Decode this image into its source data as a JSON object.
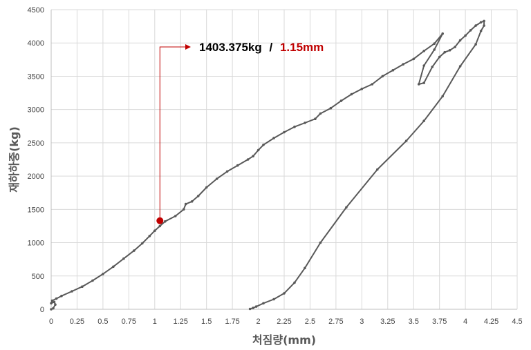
{
  "chart_data": {
    "type": "line",
    "xlabel": "처짐량(mm)",
    "ylabel": "재하하중(kg)",
    "xlim": [
      0,
      4.5
    ],
    "ylim": [
      0,
      4500
    ],
    "x_ticks": [
      "0",
      "0.25",
      "0.5",
      "0.75",
      "1",
      "1.25",
      "1.5",
      "1.75",
      "2",
      "2.25",
      "2.5",
      "2.75",
      "3",
      "3.25",
      "3.5",
      "3.75",
      "4",
      "4.25",
      "4.5"
    ],
    "y_ticks": [
      "0",
      "500",
      "1000",
      "1500",
      "2000",
      "2500",
      "3000",
      "3500",
      "4000",
      "4500"
    ],
    "grid": true,
    "legend": "none",
    "series_color": "#595959",
    "series": [
      {
        "points": [
          [
            0.0,
            0
          ],
          [
            0.02,
            15
          ],
          [
            0.04,
            70
          ],
          [
            0.03,
            110
          ],
          [
            0.0,
            90
          ],
          [
            0.01,
            130
          ],
          [
            0.05,
            160
          ],
          [
            0.1,
            200
          ],
          [
            0.2,
            270
          ],
          [
            0.3,
            340
          ],
          [
            0.4,
            430
          ],
          [
            0.5,
            530
          ],
          [
            0.6,
            640
          ],
          [
            0.7,
            760
          ],
          [
            0.8,
            880
          ],
          [
            0.88,
            990
          ],
          [
            0.95,
            1100
          ],
          [
            1.0,
            1180
          ],
          [
            1.05,
            1250
          ],
          [
            1.1,
            1320
          ],
          [
            1.2,
            1400
          ],
          [
            1.28,
            1500
          ],
          [
            1.3,
            1580
          ],
          [
            1.36,
            1620
          ],
          [
            1.42,
            1700
          ],
          [
            1.5,
            1830
          ],
          [
            1.6,
            1960
          ],
          [
            1.7,
            2070
          ],
          [
            1.8,
            2160
          ],
          [
            1.9,
            2250
          ],
          [
            1.95,
            2300
          ],
          [
            2.0,
            2390
          ],
          [
            2.05,
            2470
          ],
          [
            2.15,
            2570
          ],
          [
            2.25,
            2660
          ],
          [
            2.35,
            2740
          ],
          [
            2.45,
            2800
          ],
          [
            2.55,
            2860
          ],
          [
            2.6,
            2940
          ],
          [
            2.7,
            3020
          ],
          [
            2.8,
            3130
          ],
          [
            2.9,
            3230
          ],
          [
            3.0,
            3310
          ],
          [
            3.1,
            3380
          ],
          [
            3.2,
            3500
          ],
          [
            3.3,
            3590
          ],
          [
            3.4,
            3680
          ],
          [
            3.5,
            3760
          ],
          [
            3.6,
            3880
          ],
          [
            3.7,
            3990
          ],
          [
            3.78,
            4140
          ],
          [
            3.7,
            3900
          ],
          [
            3.6,
            3660
          ],
          [
            3.55,
            3380
          ],
          [
            3.6,
            3400
          ],
          [
            3.68,
            3640
          ],
          [
            3.75,
            3790
          ],
          [
            3.8,
            3860
          ],
          [
            3.85,
            3890
          ],
          [
            3.9,
            3940
          ],
          [
            3.95,
            4040
          ],
          [
            4.0,
            4110
          ],
          [
            4.05,
            4190
          ],
          [
            4.1,
            4260
          ],
          [
            4.15,
            4310
          ],
          [
            4.18,
            4330
          ],
          [
            4.18,
            4260
          ],
          [
            4.15,
            4180
          ],
          [
            4.1,
            3980
          ],
          [
            3.95,
            3650
          ],
          [
            3.78,
            3200
          ],
          [
            3.6,
            2830
          ],
          [
            3.43,
            2530
          ],
          [
            3.15,
            2100
          ],
          [
            2.85,
            1530
          ],
          [
            2.6,
            1000
          ],
          [
            2.45,
            620
          ],
          [
            2.35,
            400
          ],
          [
            2.25,
            240
          ],
          [
            2.15,
            150
          ],
          [
            2.05,
            90
          ],
          [
            1.98,
            40
          ],
          [
            1.95,
            20
          ],
          [
            1.92,
            5
          ]
        ]
      }
    ],
    "annotation": {
      "marker": {
        "x": 1.05,
        "y": 1330,
        "color": "#c00000"
      },
      "text_load": "1403.375kg",
      "text_sep": "/",
      "text_disp": "1.15mm",
      "load_color": "#000000",
      "disp_color": "#c00000",
      "leader_color": "#c00000"
    }
  }
}
